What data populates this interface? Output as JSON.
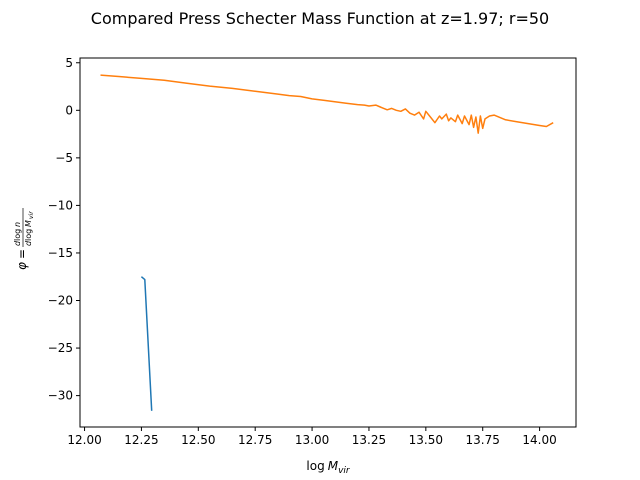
{
  "chart_data": {
    "type": "line",
    "title": "Compared Press Schecter Mass Function at z=1.97; r=50",
    "xlabel": "log M_vir",
    "ylabel": "φ = dlog n / dlog M_vir",
    "xlim": [
      11.98,
      14.16
    ],
    "ylim": [
      -33.3,
      5.5
    ],
    "x_ticks": [
      "12.00",
      "12.25",
      "12.50",
      "12.75",
      "13.00",
      "13.25",
      "13.50",
      "13.75",
      "14.00"
    ],
    "x_tick_values": [
      12.0,
      12.25,
      12.5,
      12.75,
      13.0,
      13.25,
      13.5,
      13.75,
      14.0
    ],
    "y_ticks": [
      "5",
      "0",
      "−5",
      "−10",
      "−15",
      "−20",
      "−25",
      "−30"
    ],
    "y_tick_values": [
      5,
      0,
      -5,
      -10,
      -15,
      -20,
      -25,
      -30
    ],
    "grid": false,
    "series": [
      {
        "color": "#1f77b4",
        "x": [
          12.25,
          12.265,
          12.295
        ],
        "y": [
          -17.5,
          -17.8,
          -31.6
        ]
      },
      {
        "color": "#ff7f0e",
        "x": [
          12.07,
          12.15,
          12.25,
          12.35,
          12.45,
          12.55,
          12.65,
          12.75,
          12.85,
          12.9,
          12.95,
          13.0,
          13.05,
          13.1,
          13.15,
          13.2,
          13.23,
          13.25,
          13.28,
          13.3,
          13.33,
          13.35,
          13.37,
          13.39,
          13.41,
          13.43,
          13.45,
          13.47,
          13.49,
          13.5,
          13.52,
          13.54,
          13.56,
          13.57,
          13.59,
          13.6,
          13.61,
          13.63,
          13.64,
          13.66,
          13.67,
          13.69,
          13.7,
          13.71,
          13.72,
          13.73,
          13.74,
          13.75,
          13.76,
          13.78,
          13.8,
          13.85,
          13.9,
          13.95,
          14.0,
          14.03,
          14.06
        ],
        "y": [
          3.7,
          3.55,
          3.35,
          3.15,
          2.85,
          2.55,
          2.3,
          2.0,
          1.7,
          1.55,
          1.45,
          1.2,
          1.05,
          0.9,
          0.75,
          0.6,
          0.55,
          0.45,
          0.55,
          0.35,
          0.05,
          0.2,
          0.0,
          -0.1,
          0.15,
          -0.3,
          -0.5,
          -0.2,
          -0.9,
          -0.1,
          -0.7,
          -1.3,
          -0.6,
          -0.9,
          -0.4,
          -1.1,
          -0.8,
          -1.2,
          -0.5,
          -1.4,
          -0.6,
          -1.5,
          -0.5,
          -1.8,
          -0.7,
          -2.4,
          -0.6,
          -1.9,
          -0.9,
          -0.6,
          -0.5,
          -1.0,
          -1.2,
          -1.4,
          -1.6,
          -1.7,
          -1.3
        ]
      }
    ]
  }
}
